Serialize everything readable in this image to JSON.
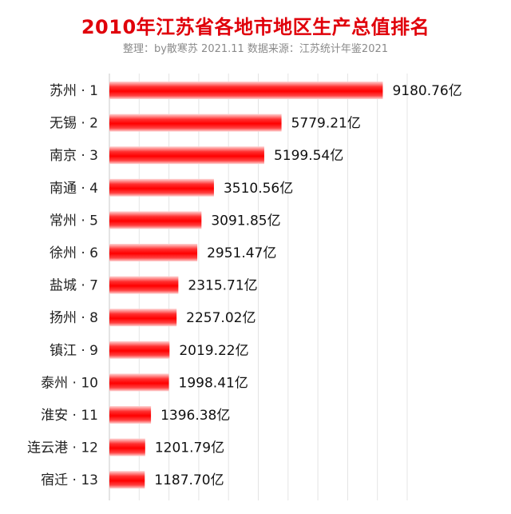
{
  "title": "2010年江苏省各地市地区生产总值排名",
  "subtitle": "整理：by散寒苏  2021.11  数据来源：江苏统计年鉴2021",
  "chart_data": {
    "type": "bar",
    "orientation": "horizontal",
    "title": "2010年江苏省各地市地区生产总值排名",
    "subtitle": "整理：by散寒苏  2021.11  数据来源：江苏统计年鉴2021",
    "categories": [
      "苏州 · 1",
      "无锡 · 2",
      "南京 · 3",
      "南通 · 4",
      "常州 · 5",
      "徐州 · 6",
      "盐城 · 7",
      "扬州 · 8",
      "镇江 · 9",
      "泰州 · 10",
      "淮安 · 11",
      "连云港 · 12",
      "宿迁 · 13"
    ],
    "values": [
      9180.76,
      5779.21,
      5199.54,
      3510.56,
      3091.85,
      2951.47,
      2315.71,
      2257.02,
      2019.22,
      1998.41,
      1396.38,
      1201.79,
      1187.7
    ],
    "value_labels": [
      "9180.76亿",
      "5779.21亿",
      "5199.54亿",
      "3510.56亿",
      "3091.85亿",
      "2951.47亿",
      "2315.71亿",
      "2257.02亿",
      "2019.22亿",
      "1998.41亿",
      "1396.38亿",
      "1201.79亿",
      "1187.70亿"
    ],
    "xlim": [
      0,
      10000
    ],
    "grid": true,
    "bar_color": "#ff0000",
    "title_color": "#e0000a"
  }
}
